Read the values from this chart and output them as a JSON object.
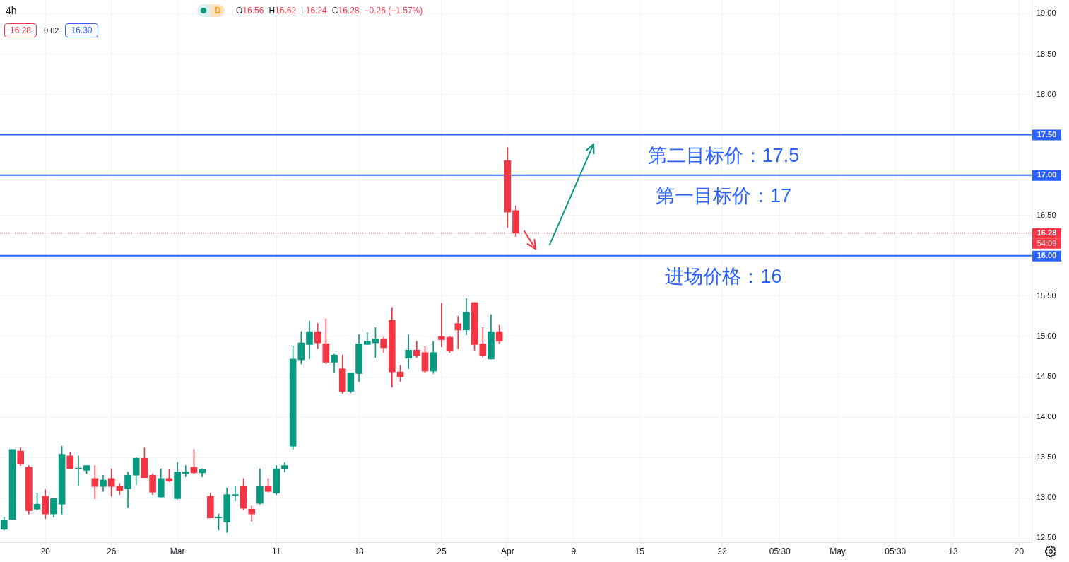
{
  "chart_data": {
    "type": "candlestick",
    "title": "4h",
    "categories": [
      null,
      null,
      null,
      null,
      null,
      "20",
      null,
      null,
      null,
      null,
      null,
      null,
      null,
      "26",
      null,
      null,
      null,
      null,
      null,
      null,
      null,
      "Mar",
      null,
      null,
      null,
      null,
      null,
      null,
      null,
      null,
      null,
      null,
      null,
      "11",
      null,
      null,
      null,
      null,
      null,
      null,
      null,
      null,
      null,
      "18",
      null,
      null,
      null,
      null,
      null,
      null,
      null,
      null,
      null,
      "25",
      null,
      null,
      null,
      null,
      null,
      null,
      null,
      "Apr",
      null,
      null,
      null,
      null,
      null,
      null,
      null,
      "9",
      null,
      null,
      null,
      null,
      null,
      null,
      null,
      "15",
      null,
      null,
      null,
      null,
      null,
      null,
      null,
      null,
      null,
      "22",
      null,
      null,
      null,
      null,
      null,
      null,
      "05:30",
      null,
      null,
      null,
      null,
      null,
      null,
      "May",
      null,
      null,
      null,
      null,
      null,
      null,
      "05:30",
      null,
      null,
      null,
      null,
      null,
      null,
      "13",
      null,
      null,
      null,
      null,
      null,
      null,
      null,
      "20",
      null
    ],
    "ohlc": [
      [
        12.61,
        12.76,
        12.6,
        12.72
      ],
      [
        12.73,
        13.6,
        12.73,
        13.6
      ],
      [
        13.58,
        13.62,
        13.4,
        13.42
      ],
      [
        13.38,
        13.4,
        12.8,
        12.84
      ],
      [
        12.86,
        13.06,
        12.85,
        12.92
      ],
      [
        13.02,
        13.1,
        12.74,
        12.8
      ],
      [
        12.8,
        12.99,
        12.76,
        12.99
      ],
      [
        12.92,
        13.64,
        12.8,
        13.54
      ],
      [
        13.52,
        13.56,
        13.36,
        13.36
      ],
      [
        13.36,
        13.52,
        13.15,
        13.36
      ],
      [
        13.34,
        13.4,
        13.3,
        13.4
      ],
      [
        13.24,
        13.4,
        12.99,
        13.14
      ],
      [
        13.14,
        13.28,
        13.08,
        13.22
      ],
      [
        13.24,
        13.36,
        13.02,
        13.14
      ],
      [
        13.14,
        13.18,
        13.04,
        13.09
      ],
      [
        13.11,
        13.32,
        12.88,
        13.28
      ],
      [
        13.28,
        13.5,
        13.16,
        13.49
      ],
      [
        13.49,
        13.62,
        13.25,
        13.25
      ],
      [
        13.28,
        13.3,
        13.04,
        13.07
      ],
      [
        13.01,
        13.36,
        13.01,
        13.24
      ],
      [
        13.24,
        13.35,
        13.2,
        13.21
      ],
      [
        12.99,
        13.44,
        12.98,
        13.32
      ],
      [
        13.3,
        13.4,
        13.26,
        13.32
      ],
      [
        13.38,
        13.6,
        13.3,
        13.31
      ],
      [
        13.31,
        13.36,
        13.26,
        13.35
      ],
      [
        13.02,
        13.06,
        12.75,
        12.75
      ],
      [
        12.75,
        12.8,
        12.6,
        12.76
      ],
      [
        12.7,
        13.12,
        12.57,
        13.04
      ],
      [
        13.03,
        13.14,
        12.96,
        13.04
      ],
      [
        13.14,
        13.24,
        12.85,
        12.87
      ],
      [
        12.86,
        12.9,
        12.71,
        12.8
      ],
      [
        12.93,
        13.36,
        12.92,
        13.14
      ],
      [
        13.14,
        13.24,
        13.07,
        13.08
      ],
      [
        13.06,
        13.4,
        13.04,
        13.36
      ],
      [
        13.36,
        13.44,
        13.32,
        13.4
      ],
      [
        13.64,
        14.88,
        13.6,
        14.72
      ],
      [
        14.71,
        15.06,
        14.66,
        14.92
      ],
      [
        14.9,
        15.19,
        14.72,
        15.06
      ],
      [
        15.06,
        15.16,
        14.85,
        14.92
      ],
      [
        14.91,
        15.22,
        14.66,
        14.68
      ],
      [
        14.68,
        14.78,
        14.55,
        14.77
      ],
      [
        14.6,
        14.77,
        14.29,
        14.32
      ],
      [
        14.32,
        14.55,
        14.3,
        14.55
      ],
      [
        14.54,
        15.02,
        14.44,
        14.91
      ],
      [
        14.9,
        15.05,
        14.9,
        14.94
      ],
      [
        14.92,
        15.11,
        14.74,
        14.97
      ],
      [
        14.97,
        14.99,
        14.8,
        14.86
      ],
      [
        15.2,
        15.36,
        14.37,
        14.56
      ],
      [
        14.56,
        14.64,
        14.44,
        14.5
      ],
      [
        14.73,
        15.02,
        14.6,
        14.83
      ],
      [
        14.83,
        14.94,
        14.74,
        14.76
      ],
      [
        14.8,
        14.88,
        14.55,
        14.57
      ],
      [
        14.57,
        14.94,
        14.54,
        14.8
      ],
      [
        15.0,
        15.41,
        14.87,
        14.96
      ],
      [
        14.99,
        15.0,
        14.8,
        14.82
      ],
      [
        15.16,
        15.25,
        14.85,
        15.08
      ],
      [
        15.08,
        15.47,
        15.02,
        15.3
      ],
      [
        15.42,
        15.42,
        14.83,
        14.9
      ],
      [
        14.91,
        15.11,
        14.74,
        14.76
      ],
      [
        14.72,
        15.27,
        14.72,
        15.06
      ],
      [
        15.06,
        15.14,
        14.91,
        14.94
      ],
      [
        17.18,
        17.34,
        16.35,
        16.54
      ],
      [
        16.56,
        16.62,
        16.24,
        16.28
      ],
      null,
      null,
      null,
      null,
      null,
      null,
      null,
      null,
      null,
      null,
      null,
      null,
      null,
      null,
      null,
      null,
      null,
      null,
      null,
      null,
      null,
      null,
      null,
      null,
      null,
      null,
      null,
      null,
      null,
      null,
      null,
      null,
      null,
      null,
      null,
      null,
      null,
      null,
      null,
      null,
      null,
      null,
      null,
      null,
      null,
      null,
      null,
      null,
      null,
      null,
      null,
      null,
      null,
      null,
      null,
      null,
      null,
      null,
      null,
      null,
      null,
      null
    ],
    "colors": [
      "#089981",
      "#089981",
      "#f23645",
      "#f23645",
      "#089981",
      "#f23645",
      "#089981",
      "#089981",
      "#f23645",
      "#089981",
      "#089981",
      "#f23645",
      "#089981",
      "#f23645",
      "#f23645",
      "#089981",
      "#089981",
      "#f23645",
      "#f23645",
      "#089981",
      "#f23645",
      "#089981",
      "#089981",
      "#f23645",
      "#089981",
      "#f23645",
      "#089981",
      "#089981",
      "#089981",
      "#f23645",
      "#f23645",
      "#089981",
      "#f23645",
      "#089981",
      "#089981",
      "#089981",
      "#089981",
      "#089981",
      "#f23645",
      "#f23645",
      "#089981",
      "#f23645",
      "#089981",
      "#089981",
      "#089981",
      "#089981",
      "#f23645",
      "#f23645",
      "#f23645",
      "#089981",
      "#f23645",
      "#f23645",
      "#089981",
      "#f23645",
      "#f23645",
      "#f23645",
      "#089981",
      "#f23645",
      "#f23645",
      "#089981",
      "#f23645",
      "#f23645",
      "#f23645",
      null,
      null,
      null,
      null,
      null,
      null,
      null,
      null,
      null,
      null,
      null,
      null,
      null,
      null,
      null,
      null,
      null,
      null,
      null,
      null,
      null,
      null,
      null,
      null,
      null,
      null,
      null,
      null,
      null,
      null,
      null,
      null,
      null,
      null,
      null,
      null,
      null,
      null,
      null,
      null,
      null,
      null,
      null,
      null,
      null,
      null,
      null,
      null,
      null,
      null,
      null,
      null,
      null,
      null,
      null,
      null,
      null,
      null,
      null,
      null,
      null,
      null
    ],
    "ylim": [
      12.45,
      19.17
    ],
    "yticks": [
      {
        "value": 12.5,
        "label": "12.50"
      },
      {
        "value": 13,
        "label": "13.00"
      },
      {
        "value": 13.5,
        "label": "13.50"
      },
      {
        "value": 14,
        "label": "14.00"
      },
      {
        "value": 14.5,
        "label": "14.50"
      },
      {
        "value": 15,
        "label": "15.00"
      },
      {
        "value": 15.5,
        "label": "15.50"
      },
      {
        "value": 16.5,
        "label": "16.50"
      },
      {
        "value": 18,
        "label": "18.00"
      },
      {
        "value": 18.5,
        "label": "18.50"
      },
      {
        "value": 19,
        "label": "19.00"
      }
    ],
    "grid": true,
    "ref_lines": [
      {
        "axis": "y",
        "value": 17.5,
        "label": "17.50",
        "color": "#2962ff",
        "line_style": "solid"
      },
      {
        "axis": "y",
        "value": 17,
        "label": "17.00",
        "color": "#2962ff",
        "line_style": "solid"
      },
      {
        "axis": "y",
        "value": 16,
        "label": "16.00",
        "color": "#2962ff",
        "line_style": "solid"
      },
      {
        "axis": "y",
        "value": 16.28,
        "label": "16.28",
        "color": "#f23645",
        "line_style": "dotted"
      }
    ],
    "annotations": [
      "D",
      "O16.56",
      "H16.62",
      "L16.24",
      "C16.28",
      "−0.26 (−1.57%)",
      "16.28",
      "0.02",
      "16.30",
      "第二目标价：17.5",
      "第一目标价：17",
      "进场价格：16",
      {
        "text": "54:09",
        "y": 16.28
      }
    ]
  }
}
